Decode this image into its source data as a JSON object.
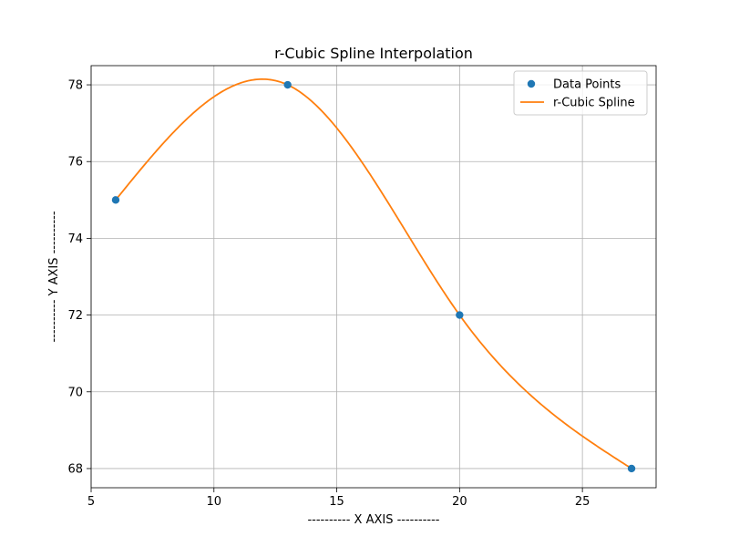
{
  "chart_data": {
    "type": "line",
    "title": "r-Cubic Spline Interpolation",
    "xlabel": "---------- X AXIS ----------",
    "ylabel": "---------- Y AXIS ----------",
    "xlim": [
      5,
      28
    ],
    "ylim": [
      67.5,
      78.5
    ],
    "xticks": [
      5,
      10,
      15,
      20,
      25
    ],
    "yticks": [
      68,
      70,
      72,
      74,
      76,
      78
    ],
    "grid": true,
    "legend_position": "top-right",
    "series": [
      {
        "name": "Data Points",
        "kind": "scatter",
        "color": "#1f77b4",
        "x": [
          6,
          13,
          20,
          27
        ],
        "y": [
          75,
          78,
          72,
          68
        ]
      },
      {
        "name": "r-Cubic Spline",
        "kind": "line",
        "color": "#ff7f0e",
        "x": [
          6,
          13,
          20,
          27
        ],
        "y": [
          75,
          78,
          72,
          68
        ]
      }
    ]
  }
}
